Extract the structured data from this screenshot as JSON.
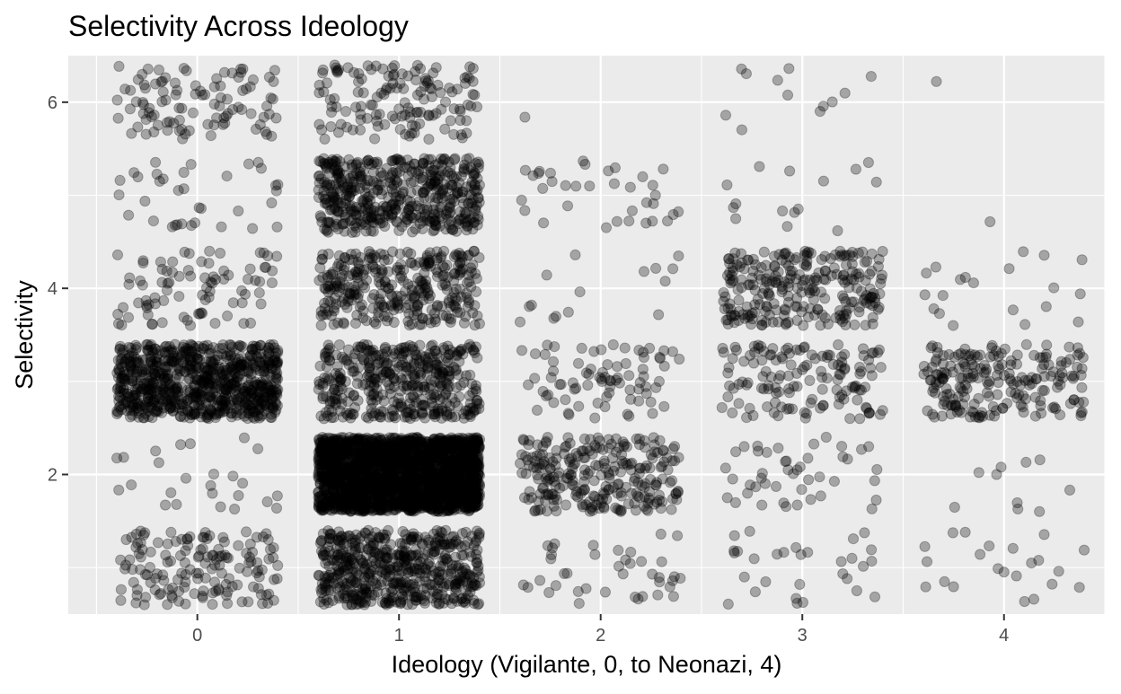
{
  "chart_data": {
    "type": "scatter",
    "title": "Selectivity Across Ideology",
    "xlabel": "Ideology (Vigilante, 0, to Neonazi, 4)",
    "ylabel": "Selectivity",
    "xlim": [
      -0.64,
      4.5
    ],
    "ylim": [
      0.5,
      6.5
    ],
    "x_ticks": [
      0,
      1,
      2,
      3,
      4
    ],
    "x_tick_labels": [
      "0",
      "1",
      "2",
      "3",
      "4"
    ],
    "y_ticks": [
      2,
      4,
      6
    ],
    "y_tick_labels": [
      "2",
      "4",
      "6"
    ],
    "grid": true,
    "jitter": {
      "width": 0.4,
      "height": 0.4
    },
    "point_color": "#000000",
    "point_alpha": 0.3,
    "panel_background": "#ebebeb",
    "grid_color": "#ffffff",
    "counts": [
      {
        "x": 0,
        "y": 1,
        "n": 150
      },
      {
        "x": 0,
        "y": 2,
        "n": 25
      },
      {
        "x": 0,
        "y": 3,
        "n": 800
      },
      {
        "x": 0,
        "y": 4,
        "n": 85
      },
      {
        "x": 0,
        "y": 5,
        "n": 35
      },
      {
        "x": 0,
        "y": 6,
        "n": 100
      },
      {
        "x": 1,
        "y": 1,
        "n": 550
      },
      {
        "x": 1,
        "y": 2,
        "n": 2200
      },
      {
        "x": 1,
        "y": 3,
        "n": 420
      },
      {
        "x": 1,
        "y": 4,
        "n": 330
      },
      {
        "x": 1,
        "y": 5,
        "n": 500
      },
      {
        "x": 1,
        "y": 6,
        "n": 140
      },
      {
        "x": 2,
        "y": 1,
        "n": 40
      },
      {
        "x": 2,
        "y": 2,
        "n": 260
      },
      {
        "x": 2,
        "y": 3,
        "n": 80
      },
      {
        "x": 2,
        "y": 4,
        "n": 15
      },
      {
        "x": 2,
        "y": 5,
        "n": 35
      },
      {
        "x": 2,
        "y": 6,
        "n": 1
      },
      {
        "x": 3,
        "y": 1,
        "n": 30
      },
      {
        "x": 3,
        "y": 2,
        "n": 45
      },
      {
        "x": 3,
        "y": 3,
        "n": 140
      },
      {
        "x": 3,
        "y": 4,
        "n": 260
      },
      {
        "x": 3,
        "y": 5,
        "n": 15
      },
      {
        "x": 3,
        "y": 6,
        "n": 12
      },
      {
        "x": 4,
        "y": 1,
        "n": 22
      },
      {
        "x": 4,
        "y": 2,
        "n": 10
      },
      {
        "x": 4,
        "y": 3,
        "n": 210
      },
      {
        "x": 4,
        "y": 4,
        "n": 20
      },
      {
        "x": 4,
        "y": 5,
        "n": 1
      },
      {
        "x": 4,
        "y": 6,
        "n": 1
      }
    ]
  }
}
